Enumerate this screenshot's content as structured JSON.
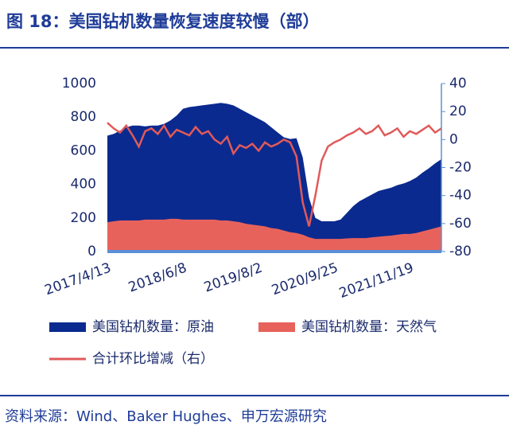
{
  "chart_data": {
    "type": "area-line",
    "title": "图 18：美国钻机数量恢复速度较慢（部）",
    "source": "资料来源：Wind、Baker Hughes、申万宏源研究",
    "categories": [
      "2017/4/13",
      null,
      null,
      null,
      null,
      null,
      null,
      null,
      null,
      null,
      null,
      null,
      "2018/6/8",
      null,
      null,
      null,
      null,
      null,
      null,
      null,
      null,
      null,
      null,
      null,
      "2019/8/2",
      null,
      null,
      null,
      null,
      null,
      null,
      null,
      null,
      null,
      null,
      null,
      "2020/9/25",
      null,
      null,
      null,
      null,
      null,
      null,
      null,
      null,
      null,
      null,
      null,
      "2021/11/19",
      null,
      null,
      null,
      null,
      null
    ],
    "series": [
      {
        "name": "美国钻机数量：原油",
        "color": "#0b2a8f",
        "kind": "area",
        "values": [
          690,
          700,
          720,
          740,
          750,
          750,
          745,
          750,
          750,
          760,
          780,
          810,
          850,
          860,
          865,
          870,
          875,
          880,
          885,
          880,
          870,
          850,
          830,
          810,
          790,
          770,
          740,
          710,
          680,
          670,
          675,
          560,
          320,
          200,
          180,
          180,
          180,
          190,
          230,
          270,
          300,
          320,
          340,
          360,
          370,
          380,
          395,
          405,
          420,
          440,
          470,
          495,
          525,
          550
        ]
      },
      {
        "name": "美国钻机数量：天然气",
        "color": "#e8625c",
        "kind": "area",
        "values": [
          175,
          180,
          185,
          185,
          185,
          185,
          190,
          190,
          190,
          190,
          195,
          195,
          190,
          190,
          190,
          190,
          190,
          190,
          185,
          185,
          180,
          175,
          165,
          160,
          155,
          150,
          140,
          135,
          125,
          115,
          110,
          100,
          85,
          75,
          75,
          75,
          75,
          75,
          78,
          80,
          80,
          80,
          85,
          88,
          92,
          95,
          100,
          105,
          105,
          110,
          120,
          130,
          140,
          150
        ]
      },
      {
        "name": "合计环比增减（右）",
        "color": "#e05a5a",
        "kind": "line",
        "axis": "y2",
        "values": [
          12,
          8,
          5,
          10,
          3,
          -5,
          6,
          8,
          4,
          10,
          2,
          7,
          5,
          3,
          9,
          4,
          6,
          0,
          -3,
          2,
          -10,
          -4,
          -6,
          -3,
          -8,
          -2,
          -5,
          -3,
          0,
          -2,
          -12,
          -45,
          -62,
          -40,
          -15,
          -5,
          -2,
          0,
          3,
          5,
          8,
          4,
          6,
          10,
          3,
          5,
          8,
          2,
          6,
          4,
          7,
          10,
          5,
          8
        ]
      }
    ],
    "ylim": [
      0,
      1000
    ],
    "yticks": [
      0,
      200,
      400,
      600,
      800,
      1000
    ],
    "y2lim": [
      -80,
      40
    ],
    "y2ticks": [
      -80,
      -60,
      -40,
      -20,
      0,
      20,
      40
    ]
  }
}
